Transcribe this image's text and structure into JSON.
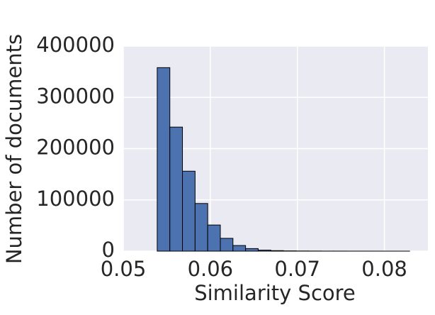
{
  "chart_data": {
    "type": "histogram",
    "x_label": "Similarity Score",
    "y_label": "Number of documents",
    "bins": [
      0.0539,
      0.05535,
      0.0568,
      0.05825,
      0.0597,
      0.06115,
      0.0626,
      0.06405,
      0.0655,
      0.06695,
      0.0684,
      0.06985,
      0.0713,
      0.07275,
      0.0742,
      0.07565,
      0.0771,
      0.07855,
      0.08,
      0.08145,
      0.0829
    ],
    "values": [
      358000,
      242000,
      156000,
      93000,
      51000,
      25000,
      11000,
      5000,
      2000,
      1000,
      500,
      300,
      200,
      100,
      100,
      50,
      50,
      30,
      20,
      10
    ],
    "color": "#4c72b0",
    "xlim": [
      0.05,
      0.085
    ],
    "ylim": [
      0,
      400000
    ],
    "xticks": [
      0.05,
      0.06,
      0.07,
      0.08
    ],
    "yticks": [
      0,
      100000,
      200000,
      300000,
      400000
    ],
    "grid": true
  }
}
